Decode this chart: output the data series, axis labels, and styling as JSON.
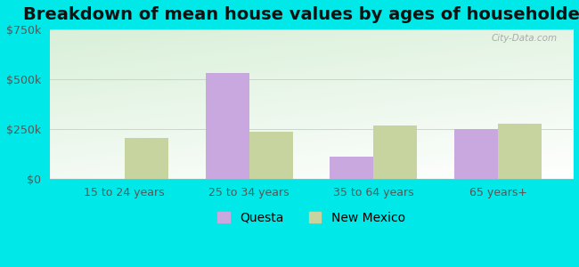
{
  "title": "Breakdown of mean house values by ages of householders",
  "categories": [
    "15 to 24 years",
    "25 to 34 years",
    "35 to 64 years",
    "65 years+"
  ],
  "questa_values": [
    0,
    530000,
    110000,
    250000
  ],
  "newmexico_values": [
    205000,
    235000,
    265000,
    275000
  ],
  "questa_color": "#c9a8e0",
  "newmexico_color": "#c8d4a0",
  "questa_label": "Questa",
  "newmexico_label": "New Mexico",
  "ylim": [
    0,
    750000
  ],
  "yticks": [
    0,
    250000,
    500000,
    750000
  ],
  "ytick_labels": [
    "$0",
    "$250k",
    "$500k",
    "$750k"
  ],
  "background_color": "#00e8e8",
  "bar_width": 0.35,
  "watermark": "City-Data.com",
  "title_fontsize": 14,
  "tick_fontsize": 9,
  "legend_fontsize": 10
}
